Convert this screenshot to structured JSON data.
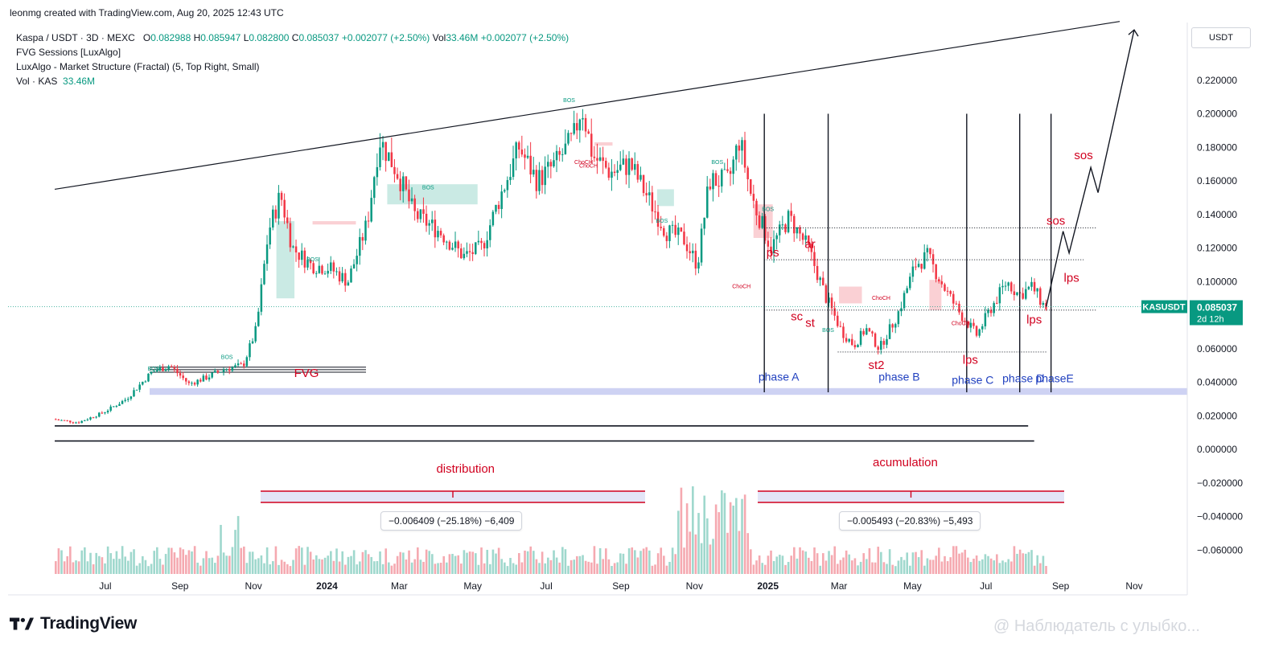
{
  "header": {
    "credit": "leonmg created with TradingView.com, Aug 20, 2025 12:43 UTC"
  },
  "legend": {
    "symbol": "Kaspa / USDT · 3D · MEXC",
    "ohlc": {
      "open_label": "O",
      "open": "0.082988",
      "high_label": "H",
      "high": "0.085947",
      "low_label": "L",
      "low": "0.082800",
      "close_label": "C",
      "close": "0.085037",
      "change": "+0.002077 (+2.50%)"
    },
    "volume_label": "Vol",
    "volume": "33.46M",
    "volume_change": "+0.002077 (+2.50%)",
    "indicators": [
      "FVG Sessions [LuxAlgo]",
      "LuxAlgo - Market Structure (Fractal) (5, Top Right, Small)"
    ],
    "vol_indicator_label": "Vol · KAS",
    "vol_indicator_value": "33.46M"
  },
  "price_axis": {
    "currency": "USDT",
    "current_symbol": "KASUSDT",
    "current_price": "0.085037",
    "countdown": "2d 12h"
  },
  "chart_data": {
    "type": "candlestick",
    "symbol": "KASUSDT",
    "timeframe": "3D",
    "y_ticks": [
      "0.220000",
      "0.200000",
      "0.180000",
      "0.160000",
      "0.140000",
      "0.120000",
      "0.100000",
      "0.080000",
      "0.060000",
      "0.040000",
      "0.020000",
      "0.000000",
      "−0.020000",
      "−0.040000",
      "−0.060000"
    ],
    "y_values": [
      0.22,
      0.2,
      0.18,
      0.16,
      0.14,
      0.12,
      0.1,
      0.08,
      0.06,
      0.04,
      0.02,
      0.0,
      -0.02,
      -0.04,
      -0.06
    ],
    "x_ticks": [
      {
        "label": "Jul",
        "bold": false
      },
      {
        "label": "Sep",
        "bold": false
      },
      {
        "label": "Nov",
        "bold": false
      },
      {
        "label": "2024",
        "bold": true
      },
      {
        "label": "Mar",
        "bold": false
      },
      {
        "label": "May",
        "bold": false
      },
      {
        "label": "Jul",
        "bold": false
      },
      {
        "label": "Sep",
        "bold": false
      },
      {
        "label": "Nov",
        "bold": false
      },
      {
        "label": "2025",
        "bold": true
      },
      {
        "label": "Mar",
        "bold": false
      },
      {
        "label": "May",
        "bold": false
      },
      {
        "label": "Jul",
        "bold": false
      },
      {
        "label": "Sep",
        "bold": false
      },
      {
        "label": "Nov",
        "bold": false
      }
    ],
    "price_path": [
      [
        "2023-05-20",
        0.018
      ],
      [
        "2023-06-10",
        0.016
      ],
      [
        "2023-07-01",
        0.022
      ],
      [
        "2023-07-20",
        0.03
      ],
      [
        "2023-08-10",
        0.046
      ],
      [
        "2023-08-25",
        0.05
      ],
      [
        "2023-09-10",
        0.039
      ],
      [
        "2023-09-25",
        0.043
      ],
      [
        "2023-10-10",
        0.048
      ],
      [
        "2023-10-25",
        0.05
      ],
      [
        "2023-11-05",
        0.072
      ],
      [
        "2023-11-15",
        0.13
      ],
      [
        "2023-11-25",
        0.152
      ],
      [
        "2023-12-05",
        0.12
      ],
      [
        "2023-12-20",
        0.11
      ],
      [
        "2024-01-05",
        0.108
      ],
      [
        "2024-01-20",
        0.1
      ],
      [
        "2024-02-05",
        0.135
      ],
      [
        "2024-02-15",
        0.185
      ],
      [
        "2024-03-01",
        0.165
      ],
      [
        "2024-03-15",
        0.14
      ],
      [
        "2024-04-05",
        0.13
      ],
      [
        "2024-04-25",
        0.115
      ],
      [
        "2024-05-10",
        0.12
      ],
      [
        "2024-05-25",
        0.15
      ],
      [
        "2024-06-10",
        0.18
      ],
      [
        "2024-06-25",
        0.16
      ],
      [
        "2024-07-10",
        0.17
      ],
      [
        "2024-07-25",
        0.185
      ],
      [
        "2024-08-01",
        0.205
      ],
      [
        "2024-08-10",
        0.175
      ],
      [
        "2024-08-25",
        0.165
      ],
      [
        "2024-09-10",
        0.17
      ],
      [
        "2024-09-25",
        0.15
      ],
      [
        "2024-10-10",
        0.13
      ],
      [
        "2024-10-25",
        0.125
      ],
      [
        "2024-11-05",
        0.11
      ],
      [
        "2024-11-15",
        0.16
      ],
      [
        "2024-12-01",
        0.16
      ],
      [
        "2024-12-10",
        0.185
      ],
      [
        "2024-12-20",
        0.15
      ],
      [
        "2025-01-05",
        0.12
      ],
      [
        "2025-01-20",
        0.138
      ],
      [
        "2025-02-05",
        0.12
      ],
      [
        "2025-02-20",
        0.09
      ],
      [
        "2025-03-05",
        0.07
      ],
      [
        "2025-03-15",
        0.062
      ],
      [
        "2025-03-25",
        0.072
      ],
      [
        "2025-04-05",
        0.06
      ],
      [
        "2025-04-20",
        0.08
      ],
      [
        "2025-05-05",
        0.11
      ],
      [
        "2025-05-15",
        0.115
      ],
      [
        "2025-05-30",
        0.095
      ],
      [
        "2025-06-10",
        0.082
      ],
      [
        "2025-06-25",
        0.068
      ],
      [
        "2025-07-05",
        0.082
      ],
      [
        "2025-07-20",
        0.1
      ],
      [
        "2025-07-30",
        0.092
      ],
      [
        "2025-08-10",
        0.097
      ],
      [
        "2025-08-20",
        0.085
      ]
    ],
    "projection": [
      [
        "2025-08-20",
        0.085
      ],
      [
        "2025-09-03",
        0.13
      ],
      [
        "2025-09-08",
        0.117
      ],
      [
        "2025-09-26",
        0.168
      ],
      [
        "2025-10-02",
        0.153
      ],
      [
        "2025-11-01",
        0.25
      ]
    ],
    "vertical_lines": [
      "2024-12-29",
      "2025-02-20",
      "2025-06-15",
      "2025-07-29",
      "2025-08-24"
    ],
    "horizontal_levels": [
      {
        "value": 0.132,
        "from": "2024-12-29",
        "to": "2025-10-01"
      },
      {
        "value": 0.113,
        "from": "2024-12-29",
        "to": "2025-09-20"
      },
      {
        "value": 0.083,
        "from": "2024-12-29",
        "to": "2025-10-01"
      },
      {
        "value": 0.058,
        "from": "2025-02-28",
        "to": "2025-08-20"
      }
    ],
    "trendline": {
      "from": [
        "2023-05-20",
        0.155
      ],
      "to": [
        "2025-10-20",
        0.255
      ]
    },
    "support_lines": [
      {
        "value": 0.014,
        "from": "2023-05-20",
        "to": "2025-08-05"
      },
      {
        "value": 0.005,
        "from": "2023-05-20",
        "to": "2025-08-10"
      }
    ],
    "fvg_lines": [
      0.049,
      0.0475,
      0.046
    ],
    "fvg_band": {
      "low": 0.0325,
      "high": 0.0365
    },
    "volume_bars_note": "volume histogram at bottom, highest spikes near Nov 2024",
    "annotations": [
      {
        "text": "FVG",
        "date": "2023-12-15",
        "price": 0.043,
        "color": "#d1001f"
      },
      {
        "text": "ps",
        "date": "2025-01-05",
        "price": 0.115,
        "color": "#d1001f"
      },
      {
        "text": "ar",
        "date": "2025-02-05",
        "price": 0.12,
        "color": "#d1001f"
      },
      {
        "text": "sc",
        "date": "2025-01-25",
        "price": 0.077,
        "color": "#d1001f"
      },
      {
        "text": "st",
        "date": "2025-02-05",
        "price": 0.073,
        "color": "#d1001f"
      },
      {
        "text": "st2",
        "date": "2025-04-01",
        "price": 0.048,
        "color": "#d1001f"
      },
      {
        "text": "lps",
        "date": "2025-06-18",
        "price": 0.051,
        "color": "#d1001f"
      },
      {
        "text": "lps",
        "date": "2025-08-10",
        "price": 0.075,
        "color": "#d1001f"
      },
      {
        "text": "lps",
        "date": "2025-09-10",
        "price": 0.1,
        "color": "#d1001f"
      },
      {
        "text": "sos",
        "date": "2025-08-28",
        "price": 0.134,
        "color": "#d1001f"
      },
      {
        "text": "sos",
        "date": "2025-09-20",
        "price": 0.173,
        "color": "#d1001f"
      },
      {
        "text": "phase A",
        "date": "2025-01-10",
        "price": 0.041,
        "color": "#1f3fbf"
      },
      {
        "text": "phase B",
        "date": "2025-04-20",
        "price": 0.041,
        "color": "#1f3fbf"
      },
      {
        "text": "phase C",
        "date": "2025-06-20",
        "price": 0.039,
        "color": "#1f3fbf"
      },
      {
        "text": "phase D",
        "date": "2025-08-01",
        "price": 0.04,
        "color": "#1f3fbf"
      },
      {
        "text": "phaseE",
        "date": "2025-08-27",
        "price": 0.04,
        "color": "#1f3fbf"
      },
      {
        "text": "distribution",
        "date": "2024-04-25",
        "price": -0.014,
        "color": "#d1001f"
      },
      {
        "text": "acumulation",
        "date": "2025-04-25",
        "price": -0.01,
        "color": "#d1001f"
      }
    ],
    "measure_labels": [
      "−0.006409 (−25.18%) −6,409",
      "−0.005493 (−20.83%) −5,493"
    ],
    "structure_labels": [
      "BOS",
      "BOS",
      "BOS",
      "BOS",
      "BOS",
      "BOS",
      "BOS",
      "ChoCH",
      "BOS",
      "ChoCH",
      "ChoCH",
      "ChoCH",
      "BOS",
      "ChoCH"
    ]
  },
  "brand": {
    "name": "TradingView"
  },
  "watermark": "@ Наблюдатель с улыбко..."
}
